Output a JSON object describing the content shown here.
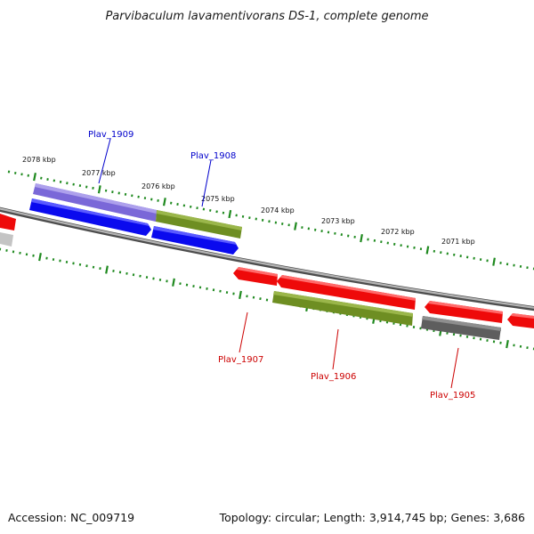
{
  "title": "Parvibaculum lavamentivorans DS-1, complete genome",
  "footer": {
    "accession": "Accession: NC_009719",
    "summary": "Topology: circular; Length: 3,914,745 bp; Genes: 3,686"
  },
  "colors": {
    "backbone": "#8a8a8a",
    "tick": "#1f8a1f",
    "forward_label": "#0000cc",
    "reverse_label": "#cc0000",
    "blue": "#0a0aee",
    "lavender": "#7a68d8",
    "olive": "#6e8e22",
    "red": "#ee0a0a",
    "gray": "#5e5e5e",
    "lightgray": "#c4c4c4"
  },
  "scale": {
    "labels": [
      "2078 kbp",
      "2077 kbp",
      "2076 kbp",
      "2075 kbp",
      "2074 kbp",
      "2073 kbp",
      "2072 kbp",
      "2071 kbp"
    ]
  },
  "gene_labels": {
    "forward": [
      "Plav_1909",
      "Plav_1908"
    ],
    "reverse": [
      "Plav_1907",
      "Plav_1906",
      "Plav_1905"
    ]
  }
}
